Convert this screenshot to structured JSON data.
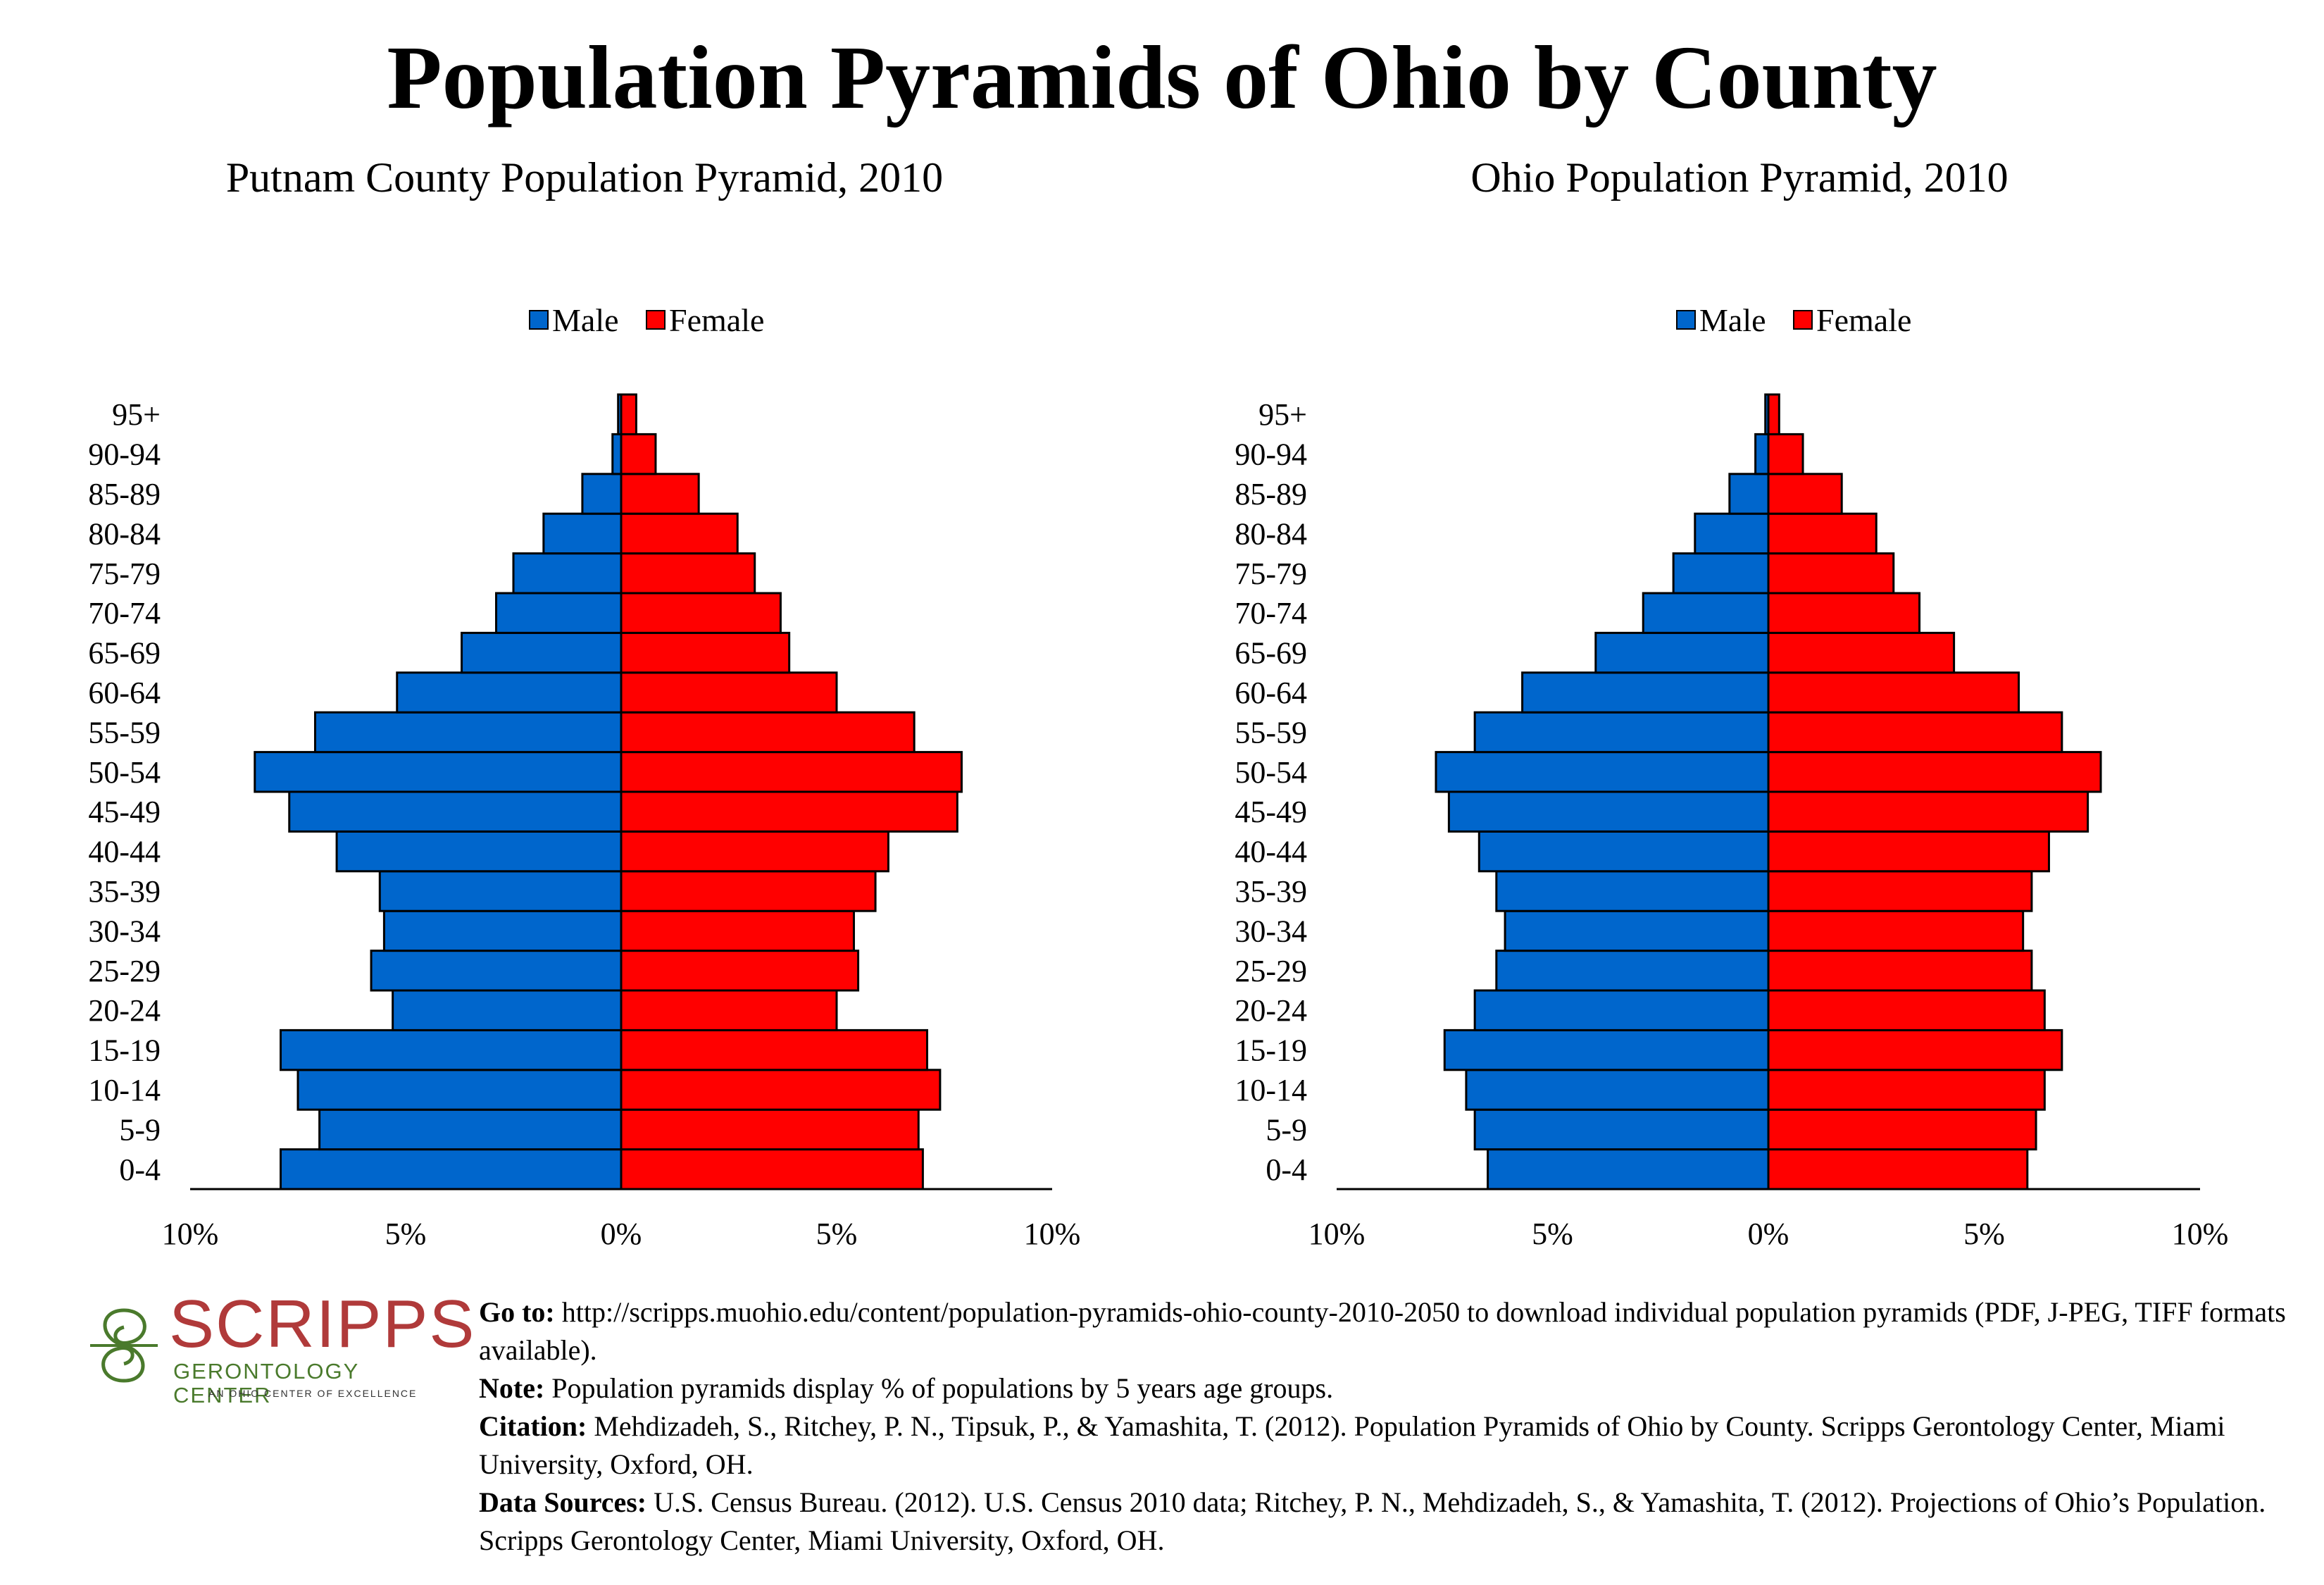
{
  "title": "Population Pyramids of Ohio by County",
  "colors": {
    "male": "#0066cc",
    "female": "#ff0000",
    "bar_stroke": "#000000"
  },
  "age_groups": [
    "0-4",
    "5-9",
    "10-14",
    "15-19",
    "20-24",
    "25-29",
    "30-34",
    "35-39",
    "40-44",
    "45-49",
    "50-54",
    "55-59",
    "60-64",
    "65-69",
    "70-74",
    "75-79",
    "80-84",
    "85-89",
    "90-94",
    "95+"
  ],
  "chart_data": [
    {
      "type": "bar",
      "orientation": "horizontal-pyramid",
      "title": "Putnam County Population Pyramid, 2010",
      "categories": [
        "0-4",
        "5-9",
        "10-14",
        "15-19",
        "20-24",
        "25-29",
        "30-34",
        "35-39",
        "40-44",
        "45-49",
        "50-54",
        "55-59",
        "60-64",
        "65-69",
        "70-74",
        "75-79",
        "80-84",
        "85-89",
        "90-94",
        "95+"
      ],
      "series": [
        {
          "name": "Male",
          "values": [
            7.9,
            7.0,
            7.5,
            7.9,
            5.3,
            5.8,
            5.5,
            5.6,
            6.6,
            7.7,
            8.5,
            7.1,
            5.2,
            3.7,
            2.9,
            2.5,
            1.8,
            0.9,
            0.2,
            0.07
          ]
        },
        {
          "name": "Female",
          "values": [
            7.0,
            6.9,
            7.4,
            7.1,
            5.0,
            5.5,
            5.4,
            5.9,
            6.2,
            7.8,
            7.9,
            6.8,
            5.0,
            3.9,
            3.7,
            3.1,
            2.7,
            1.8,
            0.8,
            0.35
          ]
        }
      ],
      "legend": [
        "Male",
        "Female"
      ],
      "legend_position": "top",
      "xlim": [
        -10,
        10
      ],
      "x_tick_labels": [
        "10%",
        "5%",
        "0%",
        "5%",
        "10%"
      ]
    },
    {
      "type": "bar",
      "orientation": "horizontal-pyramid",
      "title": "Ohio Population Pyramid, 2010",
      "categories": [
        "0-4",
        "5-9",
        "10-14",
        "15-19",
        "20-24",
        "25-29",
        "30-34",
        "35-39",
        "40-44",
        "45-49",
        "50-54",
        "55-59",
        "60-64",
        "65-69",
        "70-74",
        "75-79",
        "80-84",
        "85-89",
        "90-94",
        "95+"
      ],
      "series": [
        {
          "name": "Male",
          "values": [
            6.5,
            6.8,
            7.0,
            7.5,
            6.8,
            6.3,
            6.1,
            6.3,
            6.7,
            7.4,
            7.7,
            6.8,
            5.7,
            4.0,
            2.9,
            2.2,
            1.7,
            0.9,
            0.3,
            0.07
          ]
        },
        {
          "name": "Female",
          "values": [
            6.0,
            6.2,
            6.4,
            6.8,
            6.4,
            6.1,
            5.9,
            6.1,
            6.5,
            7.4,
            7.7,
            6.8,
            5.8,
            4.3,
            3.5,
            2.9,
            2.5,
            1.7,
            0.8,
            0.25
          ]
        }
      ],
      "legend": [
        "Male",
        "Female"
      ],
      "legend_position": "top",
      "xlim": [
        -10,
        10
      ],
      "x_tick_labels": [
        "10%",
        "5%",
        "0%",
        "5%",
        "10%"
      ]
    }
  ],
  "logo": {
    "wordmark": "SCRIPPS",
    "subtitle": "GERONTOLOGY CENTER",
    "tagline": "AN OHIO CENTER OF EXCELLENCE"
  },
  "footer": {
    "goto_label": "Go to:",
    "goto_text": "http://scripps.muohio.edu/content/population-pyramids-ohio-county-2010-2050 to download individual population pyramids (PDF, J-PEG, TIFF formats available).",
    "note_label": "Note:",
    "note_text": "Population pyramids display % of populations by 5 years age groups.",
    "citation_label": "Citation:",
    "citation_text": "Mehdizadeh, S., Ritchey, P. N., Tipsuk, P., & Yamashita, T. (2012). Population Pyramids of Ohio by County. Scripps Gerontology Center, Miami University, Oxford, OH.",
    "sources_label": "Data Sources:",
    "sources_text": "U.S. Census Bureau. (2012). U.S. Census 2010 data; Ritchey, P. N., Mehdizadeh, S., & Yamashita, T. (2012). Projections of Ohio’s Population. Scripps Gerontology Center, Miami University, Oxford, OH."
  }
}
